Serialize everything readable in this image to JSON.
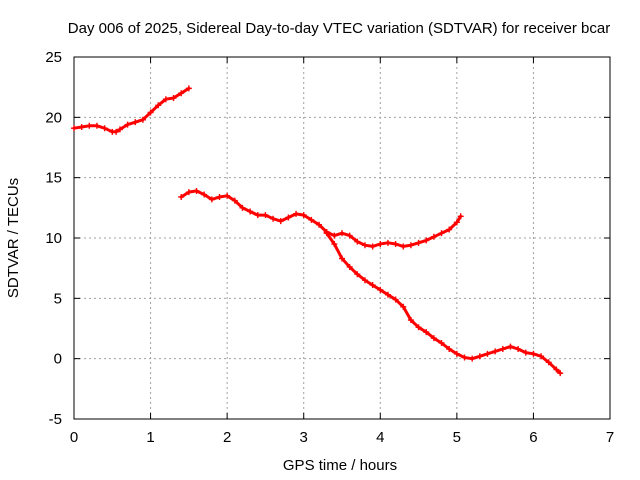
{
  "chart_data": {
    "type": "scatter",
    "title": "Day 006 of 2025, Sidereal Day-to-day VTEC variation (SDTVAR) for receiver bcar",
    "xlabel": "GPS time / hours",
    "ylabel": "SDTVAR / TECUs",
    "xlim": [
      0,
      7
    ],
    "ylim": [
      -5,
      25
    ],
    "xticks": [
      0,
      1,
      2,
      3,
      4,
      5,
      6,
      7
    ],
    "yticks": [
      -5,
      0,
      5,
      10,
      15,
      20,
      25
    ],
    "grid": true,
    "legend": "none",
    "color": "#ff0000",
    "series": [
      {
        "x": [
          0.0,
          0.1,
          0.2,
          0.3,
          0.4,
          0.5,
          0.55,
          0.6,
          0.7,
          0.8,
          0.9,
          1.0,
          1.1,
          1.2,
          1.3,
          1.4,
          1.5
        ],
        "y": [
          19.1,
          19.2,
          19.3,
          19.3,
          19.1,
          18.8,
          18.8,
          19.0,
          19.4,
          19.6,
          19.8,
          20.4,
          21.0,
          21.5,
          21.6,
          22.0,
          22.4
        ]
      },
      {
        "x": [
          1.4,
          1.5,
          1.6,
          1.7,
          1.8,
          1.9,
          2.0,
          2.1,
          2.2,
          2.3,
          2.4,
          2.5,
          2.6,
          2.7,
          2.8,
          2.9,
          3.0,
          3.1,
          3.2,
          3.3,
          3.4,
          3.5,
          3.6,
          3.7,
          3.8,
          3.9,
          4.0,
          4.1,
          4.2,
          4.3,
          4.4,
          4.5,
          4.6,
          4.7,
          4.8,
          4.9,
          5.0,
          5.05
        ],
        "y": [
          13.4,
          13.8,
          13.9,
          13.6,
          13.2,
          13.4,
          13.5,
          13.1,
          12.5,
          12.2,
          11.9,
          11.9,
          11.6,
          11.4,
          11.7,
          12.0,
          11.9,
          11.5,
          11.1,
          10.5,
          10.2,
          10.4,
          10.2,
          9.7,
          9.4,
          9.3,
          9.5,
          9.6,
          9.5,
          9.3,
          9.4,
          9.6,
          9.8,
          10.1,
          10.4,
          10.7,
          11.3,
          11.8
        ]
      },
      {
        "x": [
          3.3,
          3.4,
          3.5,
          3.6,
          3.7,
          3.8,
          3.9,
          4.0,
          4.1,
          4.2,
          4.3,
          4.4,
          4.5,
          4.6,
          4.7,
          4.8,
          4.9,
          5.0,
          5.1,
          5.2,
          5.3,
          5.4,
          5.5,
          5.6,
          5.7,
          5.8,
          5.9,
          6.0,
          6.1,
          6.2,
          6.3,
          6.35
        ],
        "y": [
          10.4,
          9.5,
          8.3,
          7.6,
          7.0,
          6.5,
          6.1,
          5.7,
          5.3,
          4.9,
          4.3,
          3.2,
          2.6,
          2.2,
          1.7,
          1.3,
          0.8,
          0.4,
          0.1,
          0.0,
          0.2,
          0.4,
          0.6,
          0.8,
          1.0,
          0.8,
          0.5,
          0.4,
          0.2,
          -0.3,
          -0.9,
          -1.2
        ]
      }
    ]
  }
}
